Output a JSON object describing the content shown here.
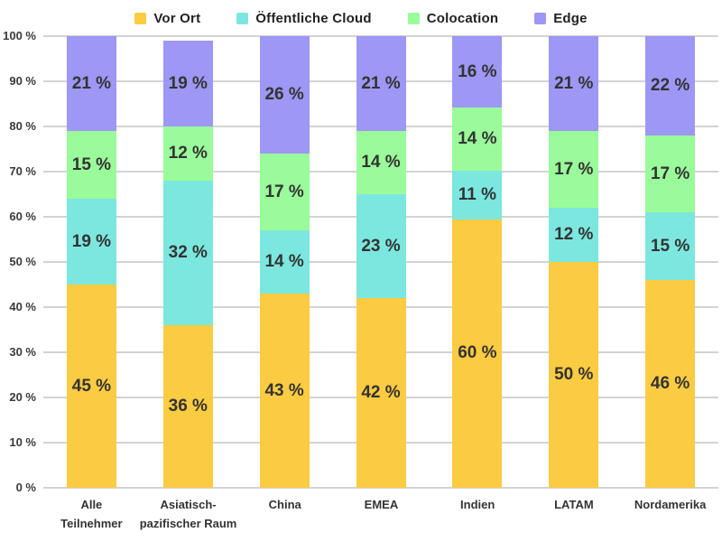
{
  "chart_data": {
    "type": "bar",
    "stacked": true,
    "orientation": "vertical",
    "title": "",
    "categories": [
      "Alle\nTeilnehmer",
      "Asiatisch-\npazifischer Raum",
      "China",
      "EMEA",
      "Indien",
      "LATAM",
      "Nordamerika"
    ],
    "series": [
      {
        "name": "Vor Ort",
        "color": "#FBCB42",
        "values": [
          45,
          36,
          43,
          42,
          60,
          50,
          46
        ]
      },
      {
        "name": "Öffentliche Cloud",
        "color": "#7CE7DE",
        "values": [
          19,
          32,
          14,
          23,
          11,
          12,
          15
        ]
      },
      {
        "name": "Colocation",
        "color": "#9AFB9A",
        "values": [
          15,
          12,
          17,
          14,
          14,
          17,
          17
        ]
      },
      {
        "name": "Edge",
        "color": "#9D97F5",
        "values": [
          21,
          19,
          26,
          21,
          16,
          21,
          22
        ]
      }
    ],
    "value_label_suffix": " %",
    "ylim": [
      0,
      100
    ],
    "y_tick_step": 10,
    "y_tick_labels": [
      "0 %",
      "10 %",
      "20 %",
      "30 %",
      "40 %",
      "50 %",
      "60 %",
      "70 %",
      "80 %",
      "90 %",
      "100 %"
    ],
    "grid": true,
    "gridline_color": "#d3d3d3",
    "legend_position": "top",
    "text_color": "#333333"
  }
}
